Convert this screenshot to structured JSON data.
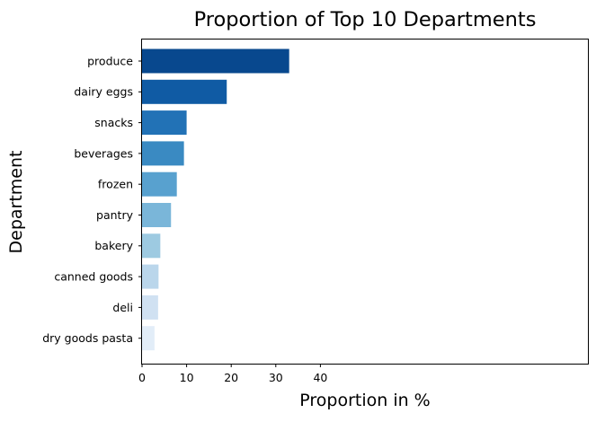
{
  "chart_data": {
    "type": "bar",
    "orientation": "horizontal",
    "title": "Proportion of Top 10 Departments",
    "xlabel": "Proportion in %",
    "ylabel": "Department",
    "categories": [
      "produce",
      "dairy eggs",
      "snacks",
      "beverages",
      "frozen",
      "pantry",
      "bakery",
      "canned goods",
      "deli",
      "dry goods pasta"
    ],
    "values": [
      33.0,
      19.0,
      10.0,
      9.4,
      7.8,
      6.5,
      4.1,
      3.7,
      3.6,
      2.8
    ],
    "xlim": [
      0,
      100
    ],
    "xticks": [
      0,
      10,
      20,
      30,
      40
    ],
    "grid": false,
    "legend": "none",
    "colormap": "Blues (descending)",
    "colors": [
      "#08488e",
      "#105ba4",
      "#2272b6",
      "#3a8ac2",
      "#58a1cf",
      "#7ab6d9",
      "#9dcae1",
      "#bad6eb",
      "#d0e1f2",
      "#e2edf8"
    ]
  }
}
